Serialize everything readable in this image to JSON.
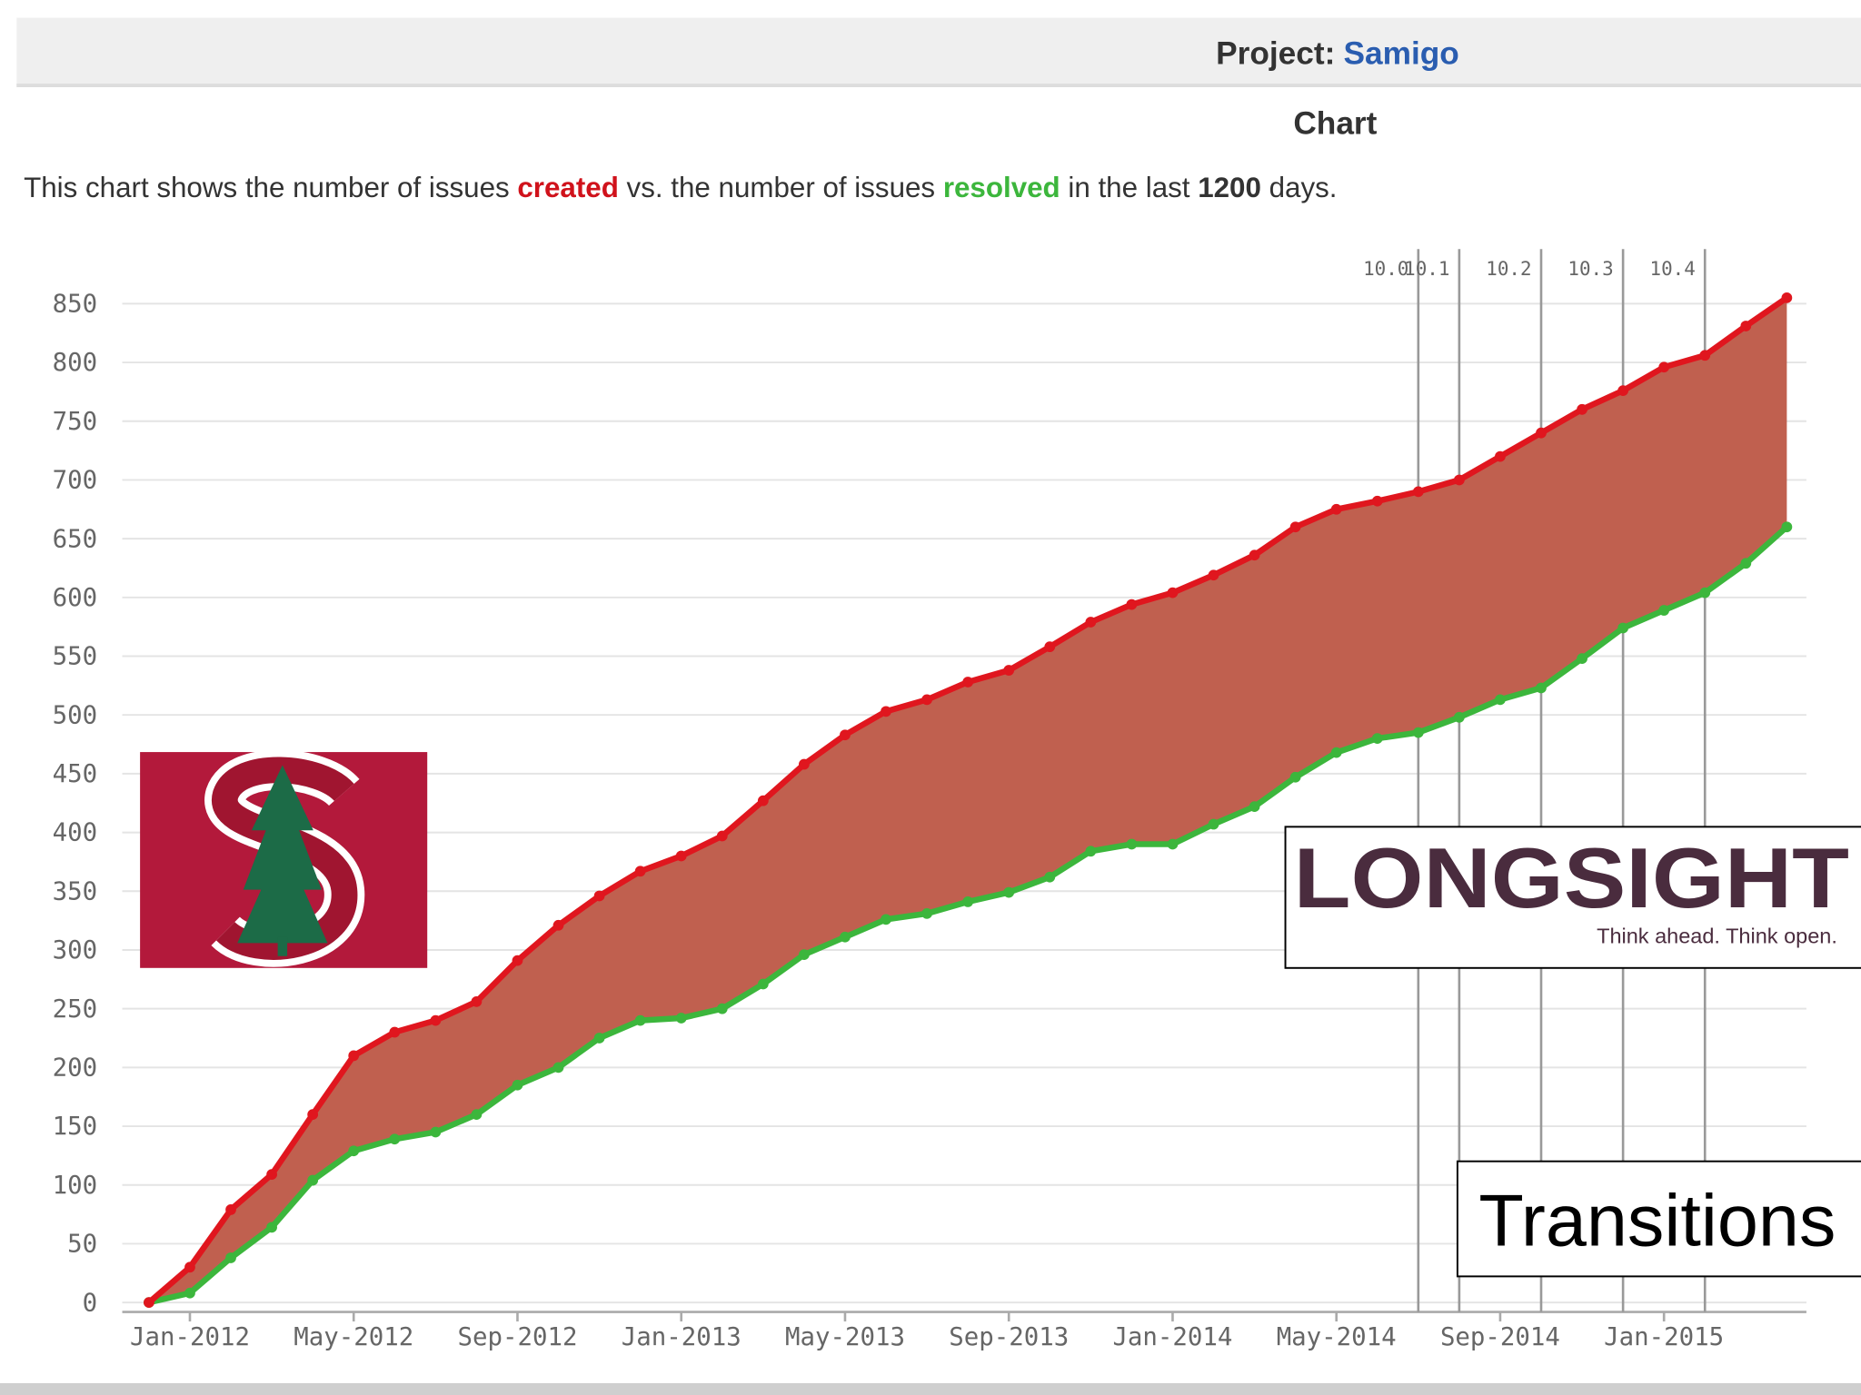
{
  "header": {
    "label": "Project:",
    "project": "Samigo"
  },
  "heading": "Chart",
  "description": {
    "parts": [
      "This chart shows the number of issues ",
      "created",
      " vs. the number of issues ",
      "resolved",
      " in the last ",
      "1200",
      " days."
    ]
  },
  "chart_data": {
    "type": "area",
    "x": [
      "2011-12",
      "2012-01",
      "2012-02",
      "2012-03",
      "2012-04",
      "2012-05",
      "2012-06",
      "2012-07",
      "2012-08",
      "2012-09",
      "2012-10",
      "2012-11",
      "2012-12",
      "2013-01",
      "2013-02",
      "2013-03",
      "2013-04",
      "2013-05",
      "2013-06",
      "2013-07",
      "2013-08",
      "2013-09",
      "2013-10",
      "2013-11",
      "2013-12",
      "2014-01",
      "2014-02",
      "2014-03",
      "2014-04",
      "2014-05",
      "2014-06",
      "2014-07",
      "2014-08",
      "2014-09",
      "2014-10",
      "2014-11",
      "2014-12",
      "2015-01",
      "2015-02",
      "2015-03",
      "2015-04"
    ],
    "series": [
      {
        "name": "created",
        "color": "#e0161e",
        "values": [
          0,
          30,
          79,
          109,
          160,
          210,
          230,
          240,
          256,
          291,
          321,
          346,
          367,
          380,
          397,
          427,
          458,
          483,
          503,
          513,
          528,
          538,
          558,
          579,
          594,
          604,
          619,
          636,
          660,
          675,
          682,
          690,
          700,
          720,
          740,
          760,
          776,
          796,
          806,
          831,
          855
        ]
      },
      {
        "name": "resolved",
        "color": "#3cb63c",
        "values": [
          0,
          8,
          38,
          64,
          104,
          129,
          139,
          145,
          160,
          185,
          200,
          225,
          240,
          242,
          250,
          271,
          296,
          311,
          326,
          331,
          341,
          349,
          362,
          384,
          390,
          390,
          407,
          422,
          447,
          468,
          480,
          485,
          498,
          513,
          523,
          548,
          574,
          589,
          604,
          629,
          660
        ]
      }
    ],
    "fill_color": "#c0604f",
    "xlim": [
      "2011-11",
      "2015-05"
    ],
    "xticks": [
      {
        "value": "2012-01",
        "label": "Jan-2012"
      },
      {
        "value": "2012-05",
        "label": "May-2012"
      },
      {
        "value": "2012-09",
        "label": "Sep-2012"
      },
      {
        "value": "2013-01",
        "label": "Jan-2013"
      },
      {
        "value": "2013-05",
        "label": "May-2013"
      },
      {
        "value": "2013-09",
        "label": "Sep-2013"
      },
      {
        "value": "2014-01",
        "label": "Jan-2014"
      },
      {
        "value": "2014-05",
        "label": "May-2014"
      },
      {
        "value": "2014-09",
        "label": "Sep-2014"
      },
      {
        "value": "2015-01",
        "label": "Jan-2015"
      }
    ],
    "ylim": [
      0,
      850
    ],
    "yticks": [
      0,
      50,
      100,
      150,
      200,
      250,
      300,
      350,
      400,
      450,
      500,
      550,
      600,
      650,
      700,
      750,
      800,
      850
    ],
    "grid": true,
    "versions": [
      {
        "x": "2014-07",
        "label": "10.0"
      },
      {
        "x": "2014-08",
        "label": "10.1"
      },
      {
        "x": "2014-10",
        "label": "10.2"
      },
      {
        "x": "2014-12",
        "label": "10.3"
      },
      {
        "x": "2015-02",
        "label": "10.4"
      }
    ]
  },
  "overlays": {
    "brand": "LONGSIGHT",
    "tagline": "Think ahead. Think open.",
    "caption": "Transitions"
  }
}
